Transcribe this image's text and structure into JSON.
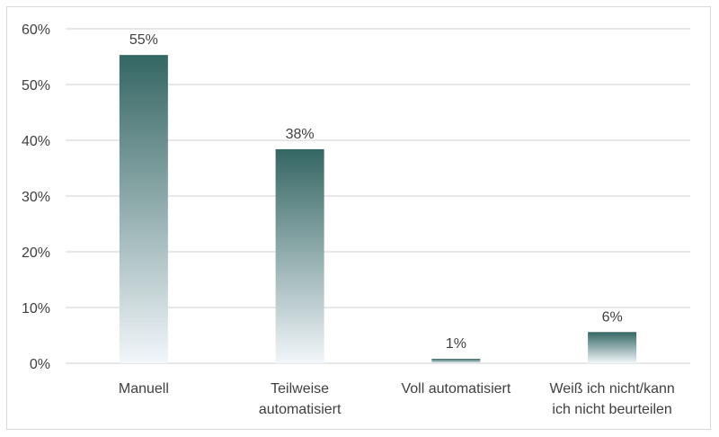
{
  "chart_data": {
    "type": "bar",
    "title": "",
    "xlabel": "",
    "ylabel": "",
    "categories": [
      [
        "Manuell"
      ],
      [
        "Teilweise",
        "automatisiert"
      ],
      [
        "Voll automatisiert"
      ],
      [
        "Weiß ich nicht/kann",
        "ich nicht beurteilen"
      ]
    ],
    "values": [
      55.3,
      38.4,
      0.8,
      5.6
    ],
    "data_labels": [
      "55%",
      "38%",
      "1%",
      "6%"
    ],
    "ylim": [
      0,
      60
    ],
    "yticks": [
      0,
      10,
      20,
      30,
      40,
      50,
      60
    ],
    "ytick_labels": [
      "0%",
      "10%",
      "20%",
      "30%",
      "40%",
      "50%",
      "60%"
    ],
    "grid": true,
    "legend": "none",
    "bar_color_top": "#346663",
    "bar_color_bottom": "#f2f6fa",
    "grid_color": "#d9d9d9"
  }
}
